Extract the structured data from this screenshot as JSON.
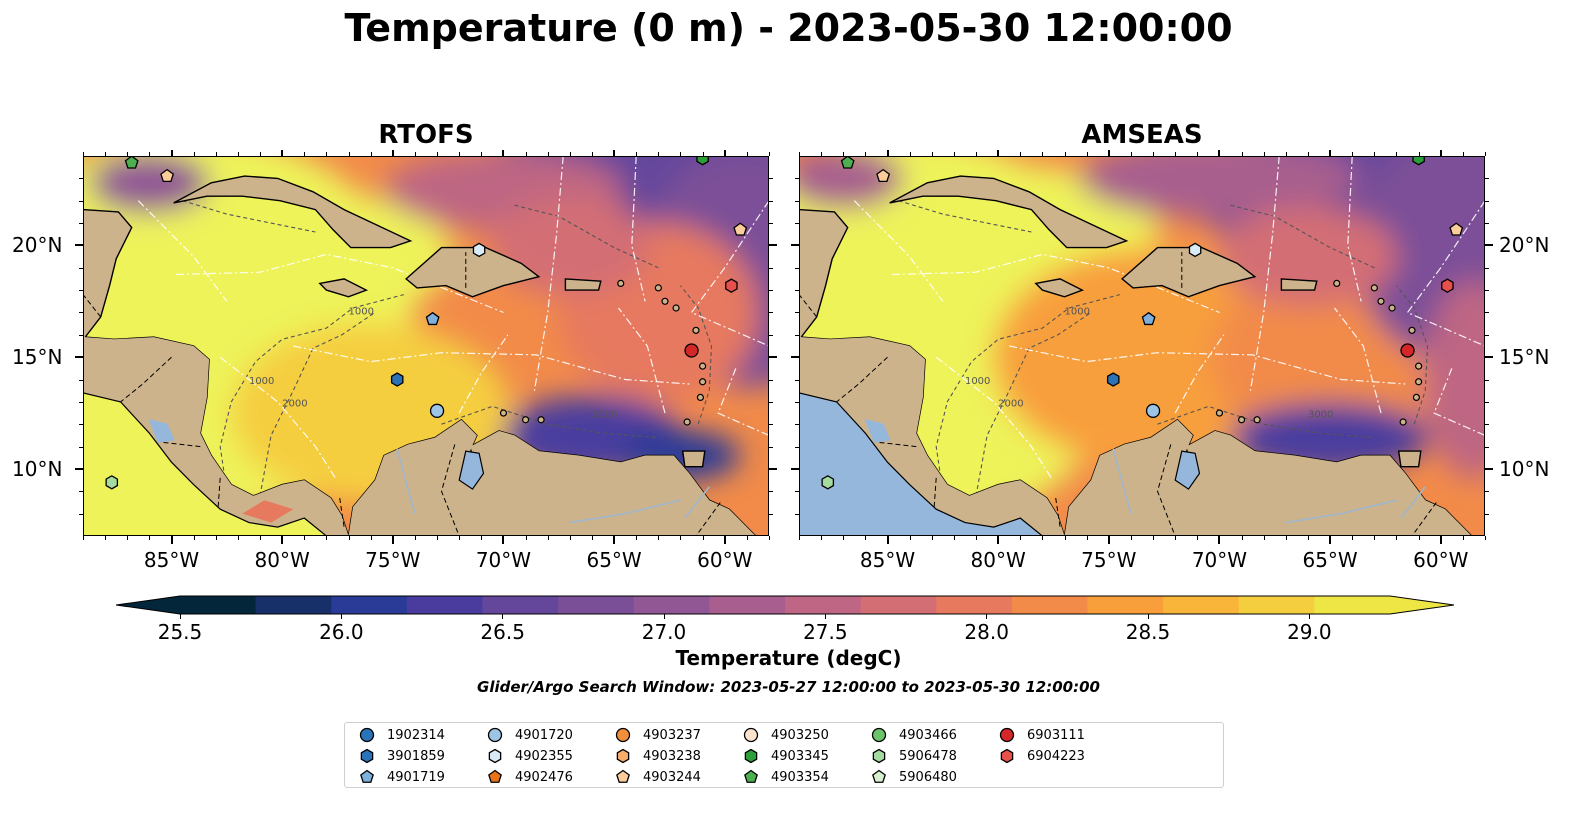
{
  "title": "Temperature (0 m) - 2023-05-30 12:00:00",
  "panels": [
    {
      "title": "RTOFS"
    },
    {
      "title": "AMSEAS"
    }
  ],
  "axes": {
    "x_labels": [
      "85°W",
      "80°W",
      "75°W",
      "70°W",
      "65°W",
      "60°W"
    ],
    "y_labels": [
      "20°N",
      "15°N",
      "10°N"
    ],
    "lon_range": [
      -89,
      -58
    ],
    "lat_range": [
      7,
      24
    ]
  },
  "colorbar": {
    "label": "Temperature (degC)",
    "ticks": [
      "25.5",
      "26.0",
      "26.5",
      "27.0",
      "27.5",
      "28.0",
      "28.5",
      "29.0"
    ],
    "range": [
      25.5,
      29.25
    ],
    "colors": [
      "#03263a",
      "#18306a",
      "#2a3b97",
      "#4a3c9f",
      "#64479b",
      "#7b4f98",
      "#915694",
      "#a85e8e",
      "#be6683",
      "#d36e75",
      "#e6795e",
      "#f28b49",
      "#f89f3c",
      "#f8b53a",
      "#f5ce40",
      "#eee644"
    ]
  },
  "search_window": "Glider/Argo Search Window: 2023-05-27 12:00:00 to 2023-05-30 12:00:00",
  "legend": [
    {
      "id": "1902314",
      "marker": "circle",
      "color": "#2b73b8"
    },
    {
      "id": "3901859",
      "marker": "hexagon",
      "color": "#2b73b8"
    },
    {
      "id": "4901719",
      "marker": "pentagon",
      "color": "#7fb0dc"
    },
    {
      "id": "4901720",
      "marker": "circle",
      "color": "#9cc5e6"
    },
    {
      "id": "4902355",
      "marker": "hexagon",
      "color": "#d9ebf6"
    },
    {
      "id": "4902476",
      "marker": "pentagon",
      "color": "#e8731a"
    },
    {
      "id": "4903237",
      "marker": "circle",
      "color": "#f28f3b"
    },
    {
      "id": "4903238",
      "marker": "hexagon",
      "color": "#f7ad6a"
    },
    {
      "id": "4903244",
      "marker": "pentagon",
      "color": "#fbcd9b"
    },
    {
      "id": "4903250",
      "marker": "circle",
      "color": "#fde3cc"
    },
    {
      "id": "4903345",
      "marker": "hexagon",
      "color": "#2e9e3a"
    },
    {
      "id": "4903354",
      "marker": "pentagon",
      "color": "#4cb050"
    },
    {
      "id": "4903466",
      "marker": "circle",
      "color": "#6cc46a"
    },
    {
      "id": "5906478",
      "marker": "hexagon",
      "color": "#a6dba0"
    },
    {
      "id": "5906480",
      "marker": "pentagon",
      "color": "#d7f0cf"
    },
    {
      "id": "6903111",
      "marker": "circle",
      "color": "#d62728"
    },
    {
      "id": "6904223",
      "marker": "hexagon",
      "color": "#e8504c"
    }
  ],
  "floats": [
    {
      "id": "4903354",
      "lon": -86.8,
      "lat": 23.7
    },
    {
      "id": "4903244",
      "lon": -85.2,
      "lat": 23.1
    },
    {
      "id": "4902355",
      "lon": -71.1,
      "lat": 19.8
    },
    {
      "id": "4903345",
      "lon": -61.0,
      "lat": 23.9
    },
    {
      "id": "4903244",
      "lon": -59.3,
      "lat": 20.7
    },
    {
      "id": "6904223",
      "lon": -59.7,
      "lat": 18.2
    },
    {
      "id": "4901719",
      "lon": -73.2,
      "lat": 16.7
    },
    {
      "id": "6903111",
      "lon": -61.5,
      "lat": 15.3
    },
    {
      "id": "3901859",
      "lon": -74.8,
      "lat": 14.0
    },
    {
      "id": "4901720",
      "lon": -73.0,
      "lat": 12.6
    },
    {
      "id": "5906478",
      "lon": -87.7,
      "lat": 9.4
    }
  ],
  "contour_labels": [
    "1000",
    "2000",
    "3000",
    "1000",
    "2000"
  ]
}
